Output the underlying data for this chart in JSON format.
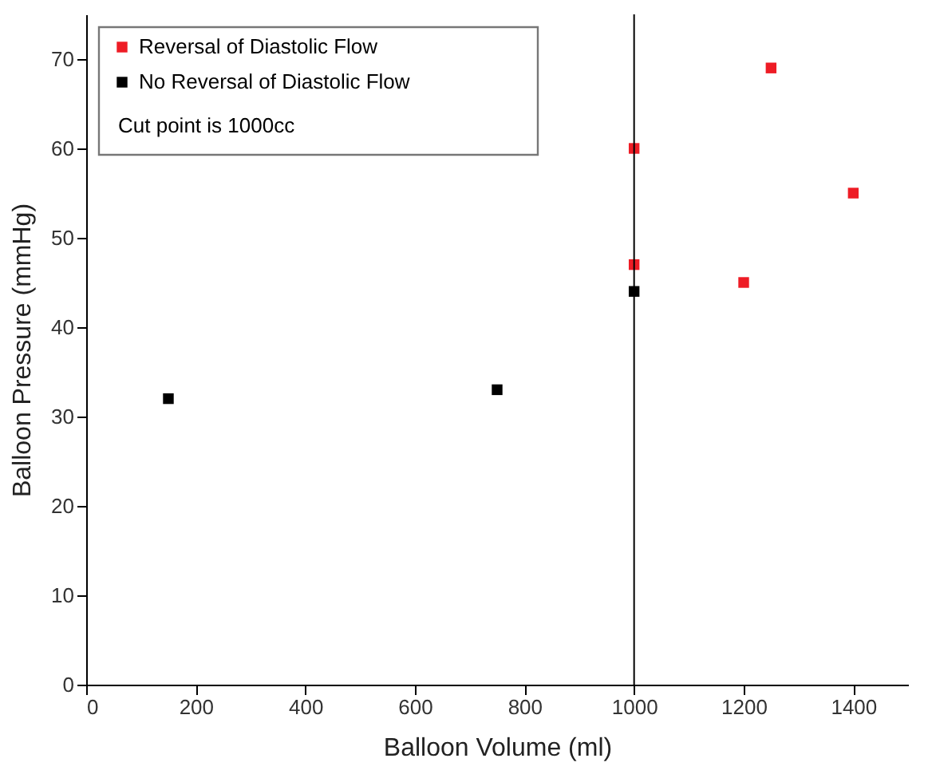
{
  "chart_data": {
    "type": "scatter",
    "xlabel": "Balloon Volume (ml)",
    "ylabel": "Balloon Pressure (mmHg)",
    "xlim": [
      0,
      1500
    ],
    "ylim": [
      0,
      75
    ],
    "xticks": [
      0,
      200,
      400,
      600,
      800,
      1000,
      1200,
      1400
    ],
    "yticks": [
      0,
      10,
      20,
      30,
      40,
      50,
      60,
      70
    ],
    "marker": "square",
    "grid": false,
    "legend": "top left",
    "annotations": [
      "Cut point is 1000cc"
    ],
    "ref_lines": [
      {
        "axis": "x",
        "value": 1000,
        "color": "#000000"
      }
    ],
    "series": [
      {
        "name": "Reversal of Diastolic Flow",
        "color": "#ee1c25",
        "x": [
          1000,
          1000,
          1200,
          1250,
          1400
        ],
        "values": [
          60,
          47,
          45,
          69,
          55
        ]
      },
      {
        "name": "No Reversal of Diastolic Flow",
        "color": "#000000",
        "x": [
          150,
          750,
          1000
        ],
        "values": [
          32,
          33,
          44
        ]
      }
    ]
  }
}
